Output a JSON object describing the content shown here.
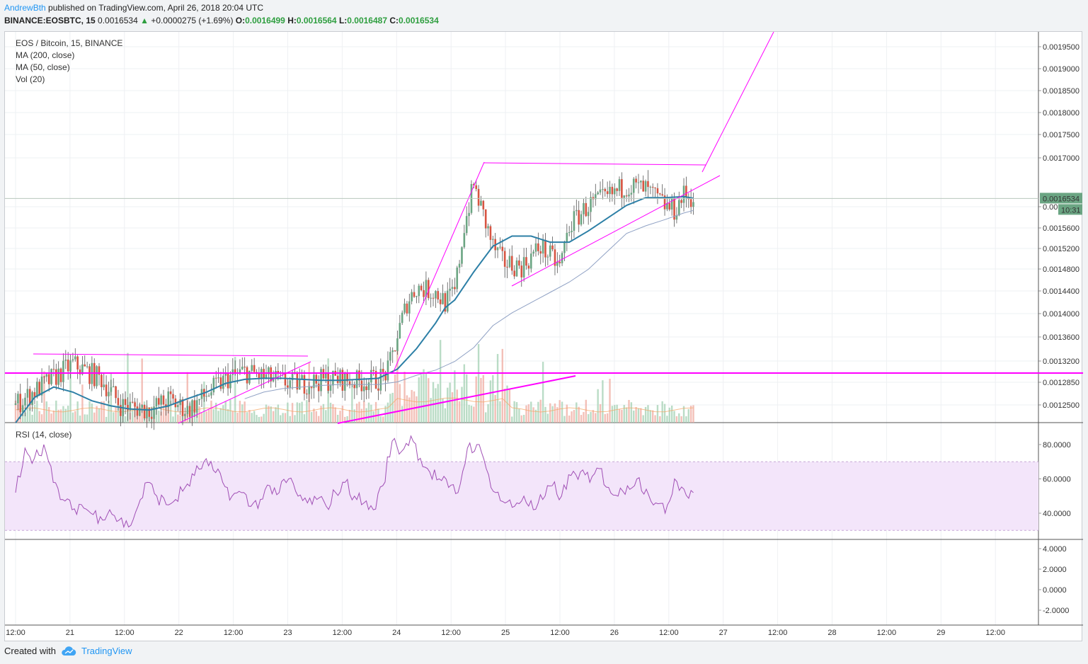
{
  "header": {
    "author": "AndrewBth",
    "published": " published on TradingView.com, April 26, 2018 20:04 UTC",
    "symbol": "BINANCE:EOSBTC, 15",
    "price": "0.0016534",
    "change_arrow": "▲",
    "change": "+0.0000275 (+1.69%)",
    "o_label": "O:",
    "o_value": "0.0016499",
    "h_label": "H:",
    "h_value": "0.0016564",
    "l_label": "L:",
    "l_value": "0.0016487",
    "c_label": "C:",
    "c_value": "0.0016534"
  },
  "legend": {
    "title": "EOS / Bitcoin, 15, BINANCE",
    "ma200": "MA (200, close)",
    "ma50": "MA (50, close)",
    "vol": "Vol (20)",
    "rsi": "RSI (14, close)"
  },
  "footer": {
    "created_with": "Created with",
    "brand": "TradingView"
  },
  "colors": {
    "up": "#6ba583",
    "down": "#d75442",
    "ma50": "#2c7fa6",
    "ma200": "#8fa1c4",
    "rsi": "#a04fb5",
    "drawing": "#ff00ff",
    "rsi_band": "#f3e5fa",
    "price_tag": "#6ba583"
  },
  "chart_data": [
    {
      "type": "candlestick",
      "title": "EOS / Bitcoin, 15, BINANCE",
      "x_tick_labels": [
        "12:00",
        "21",
        "12:00",
        "22",
        "12:00",
        "23",
        "12:00",
        "24",
        "12:00",
        "25",
        "12:00",
        "26",
        "12:00",
        "27",
        "12:00",
        "28",
        "12:00",
        "29",
        "12:00"
      ],
      "y_tick_labels": [
        "0.0019500",
        "0.0019000",
        "0.0018500",
        "0.0018000",
        "0.0017500",
        "0.0017000",
        "0.0016000",
        "0.0015600",
        "0.0015200",
        "0.0014800",
        "0.0014400",
        "0.0014000",
        "0.0013600",
        "0.0013200",
        "0.0012850",
        "0.0012500"
      ],
      "last_price_label": "0.0016534",
      "countdown_label": "10:31",
      "price_path": [
        [
          0,
          0.00125
        ],
        [
          6,
          0.00133
        ],
        [
          9,
          0.0013
        ],
        [
          11,
          0.00125
        ],
        [
          14,
          0.00124
        ],
        [
          16,
          0.00126
        ],
        [
          18,
          0.00124
        ],
        [
          20,
          0.00127
        ],
        [
          22,
          0.0013
        ],
        [
          24,
          0.001315
        ],
        [
          26,
          0.001305
        ],
        [
          28,
          0.001295
        ],
        [
          30,
          0.001292
        ],
        [
          32,
          0.001298
        ],
        [
          34,
          0.0013
        ],
        [
          36,
          0.001295
        ],
        [
          38,
          0.0013
        ],
        [
          39,
          0.001315
        ],
        [
          40,
          0.001385
        ],
        [
          41,
          0.00145
        ],
        [
          42,
          0.00148
        ],
        [
          44,
          0.00147
        ],
        [
          45,
          0.00145
        ],
        [
          46,
          0.00147
        ],
        [
          47,
          0.0016
        ],
        [
          48,
          0.00168
        ],
        [
          49,
          0.00162
        ],
        [
          50,
          0.00156
        ],
        [
          51,
          0.00153
        ],
        [
          53,
          0.00152
        ],
        [
          55,
          0.00156
        ],
        [
          57,
          0.00152
        ],
        [
          58,
          0.0016
        ],
        [
          60,
          0.00164
        ],
        [
          62,
          0.001655
        ],
        [
          64,
          0.00168
        ],
        [
          66,
          0.00167
        ],
        [
          68,
          0.00164
        ],
        [
          69,
          0.00163
        ],
        [
          70,
          0.00166
        ],
        [
          71,
          0.0016534
        ]
      ],
      "ma50_path": [
        [
          0,
          0.001215
        ],
        [
          2,
          0.001265
        ],
        [
          4,
          0.001285
        ],
        [
          6,
          0.001275
        ],
        [
          8,
          0.001258
        ],
        [
          10,
          0.001248
        ],
        [
          12,
          0.001242
        ],
        [
          14,
          0.00124
        ],
        [
          16,
          0.001248
        ],
        [
          18,
          0.001262
        ],
        [
          20,
          0.001275
        ],
        [
          22,
          0.001292
        ],
        [
          24,
          0.0013
        ],
        [
          26,
          0.001302
        ],
        [
          28,
          0.001302
        ],
        [
          30,
          0.0013
        ],
        [
          32,
          0.001298
        ],
        [
          34,
          0.001298
        ],
        [
          36,
          0.0013
        ],
        [
          38,
          0.001302
        ],
        [
          40,
          0.00132
        ],
        [
          42,
          0.00136
        ],
        [
          44,
          0.00141
        ],
        [
          45,
          0.00144
        ],
        [
          46,
          0.001455
        ],
        [
          48,
          0.00151
        ],
        [
          50,
          0.00156
        ],
        [
          52,
          0.00158
        ],
        [
          54,
          0.00158
        ],
        [
          56,
          0.001568
        ],
        [
          58,
          0.001568
        ],
        [
          60,
          0.00159
        ],
        [
          62,
          0.001615
        ],
        [
          64,
          0.00164
        ],
        [
          66,
          0.001655
        ],
        [
          68,
          0.001655
        ],
        [
          70,
          0.001657
        ],
        [
          71,
          0.001654
        ]
      ],
      "ma200_path": [
        [
          24,
          0.001262
        ],
        [
          26,
          0.001275
        ],
        [
          28,
          0.001282
        ],
        [
          30,
          0.001285
        ],
        [
          32,
          0.001288
        ],
        [
          34,
          0.00129
        ],
        [
          36,
          0.00129
        ],
        [
          38,
          0.00129
        ],
        [
          40,
          0.001295
        ],
        [
          42,
          0.001308
        ],
        [
          44,
          0.001318
        ],
        [
          46,
          0.001335
        ],
        [
          48,
          0.001362
        ],
        [
          50,
          0.001405
        ],
        [
          52,
          0.00143
        ],
        [
          54,
          0.00145
        ],
        [
          56,
          0.00147
        ],
        [
          58,
          0.00149
        ],
        [
          60,
          0.001515
        ],
        [
          62,
          0.00155
        ],
        [
          64,
          0.001585
        ],
        [
          66,
          0.0016
        ],
        [
          68,
          0.001612
        ],
        [
          70,
          0.001625
        ],
        [
          71,
          0.00163
        ]
      ]
    },
    {
      "type": "line",
      "title": "RSI (14, close)",
      "y_tick_labels": [
        "80.0000",
        "60.0000",
        "40.0000"
      ],
      "band": [
        30,
        70
      ],
      "values": [
        52,
        78,
        72,
        80,
        58,
        48,
        42,
        45,
        40,
        38,
        42,
        36,
        32,
        44,
        58,
        50,
        45,
        48,
        55,
        62,
        70,
        65,
        58,
        50,
        52,
        44,
        48,
        56,
        52,
        60,
        50,
        46,
        48,
        44,
        52,
        58,
        50,
        46,
        42,
        56,
        82,
        76,
        85,
        72,
        64,
        60,
        55,
        52,
        78,
        80,
        66,
        52,
        46,
        44,
        50,
        42,
        48,
        56,
        50,
        62,
        64,
        58,
        66,
        55,
        50,
        56,
        60,
        54,
        46,
        40,
        60,
        54,
        52
      ]
    },
    {
      "type": "line",
      "title": "",
      "y_tick_labels": [
        "4.0000",
        "2.0000",
        "0.0000",
        "-2.0000"
      ],
      "values": []
    }
  ]
}
